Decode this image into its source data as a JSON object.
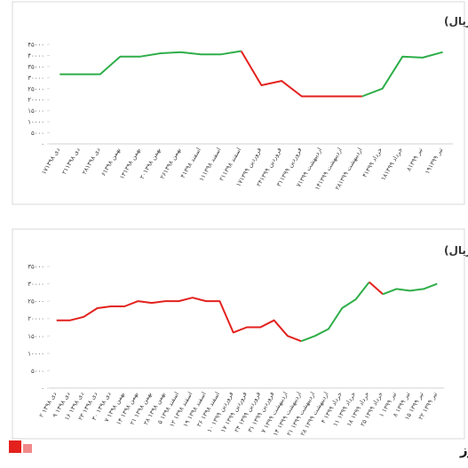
{
  "chart_data": [
    {
      "type": "line",
      "title": "روند قیمت لوب کات سبک و سنگین پالایشگاه تهران (تن-هزار ریال)",
      "categories": [
        "۱۷دی ۱۳۹۸",
        "۲۱دی ۱۳۹۸",
        "۲۸دی ۱۳۹۸",
        "۶بهمن ۱۳۹۸",
        "۱۳بهمن ۱۳۹۸",
        "۲۰بهمن ۱۳۹۸",
        "۲۶بهمن ۱۳۹۸",
        "۴اسفند ۱۳۹۸",
        "۱۱اسفند ۱۳۹۸",
        "۲۱اسفند ۱۳۹۸",
        "۱۷فروردین ۱۳۹۹",
        "۲۴فروردین ۱۳۹۹",
        "۳۱فروردین ۱۳۹۹",
        "۷اردیبهشت ۱۳۹۹",
        "۱۴اردیبهشت ۱۳۹۹",
        "۲۸اردیبهشت ۱۳۹۹",
        "۴خرداد ۱۳۹۹",
        "۱۸خرداد ۱۳۹۹",
        "۸تیر ۱۳۹۹",
        "۱۹تیر ۱۳۹۹"
      ],
      "series": [
        {
          "color": "#2eae48",
          "values": [
            31500,
            31500,
            31500,
            39500,
            39500,
            41000,
            41500,
            40500,
            40500,
            42000,
            null,
            null,
            null,
            null,
            null,
            null,
            null,
            null,
            null,
            null
          ]
        },
        {
          "color": "#e3211d",
          "values": [
            null,
            null,
            null,
            null,
            null,
            null,
            null,
            null,
            null,
            42000,
            26500,
            28500,
            21500,
            21500,
            21500,
            21500,
            null,
            null,
            null,
            null
          ]
        },
        {
          "color": "#2eae48",
          "values": [
            null,
            null,
            null,
            null,
            null,
            null,
            null,
            null,
            null,
            null,
            null,
            null,
            null,
            null,
            null,
            21500,
            25000,
            39500,
            39000,
            41500
          ]
        }
      ],
      "ylim": [
        0,
        45000
      ],
      "yticks": [
        {
          "value": 0,
          "label": "۰"
        },
        {
          "value": 5000,
          "label": "۵۰۰۰"
        },
        {
          "value": 10000,
          "label": "۱۰۰۰۰"
        },
        {
          "value": 15000,
          "label": "۱۵۰۰۰"
        },
        {
          "value": 20000,
          "label": "۲۰۰۰۰"
        },
        {
          "value": 25000,
          "label": "۲۵۰۰۰"
        },
        {
          "value": 30000,
          "label": "۳۰۰۰۰"
        },
        {
          "value": 35000,
          "label": "۳۵۰۰۰"
        },
        {
          "value": 40000,
          "label": "۴۰۰۰۰"
        },
        {
          "value": 45000,
          "label": "۴۵۰۰۰"
        }
      ],
      "grid": false
    },
    {
      "type": "line",
      "title": "روند قیمتی وکیوم باتوم پالایشگاه تهران (تن-هزار ریال)",
      "categories": [
        "۲ دی ۱۳۹۸",
        "۹ دی ۱۳۹۸",
        "۱۶ دی ۱۳۹۸",
        "۲۳ دی ۱۳۹۸",
        "۳۰ دی ۱۳۹۸",
        "۷ بهمن ۱۳۹۸",
        "۱۴ بهمن ۱۳۹۸",
        "۲۱ بهمن ۱۳۹۸",
        "۲۸ بهمن ۱۳۹۸",
        "۵ اسفند ۱۳۹۸",
        "۱۲ اسفند ۱۳۹۸",
        "۱۹ اسفند ۱۳۹۸",
        "۲۶ اسفند ۱۳۹۸",
        "۱۰ فروردین ۱۳۹۹",
        "۱۷ فروردین ۱۳۹۹",
        "۲۴ فروردین ۱۳۹۹",
        "۳۱ فروردین ۱۳۹۹",
        "۷ اردیبهشت ۱۳۹۹",
        "۱۴ اردیبهشت ۱۳۹۹",
        "۲۱ اردیبهشت ۱۳۹۹",
        "۲۸ اردیبهشت ۱۳۹۹",
        "۴ خرداد ۱۳۹۹",
        "۱۱ خرداد ۱۳۹۹",
        "۱۸ خرداد ۱۳۹۹",
        "۲۵ خرداد ۱۳۹۹",
        "۱ تیر ۱۳۹۹",
        "۸ تیر ۱۳۹۹",
        "۱۵ تیر ۱۳۹۹",
        "۲۲ تیر ۱۳۹۹"
      ],
      "series": [
        {
          "color": "#e3211d",
          "values": [
            19500,
            19500,
            20500,
            23000,
            23500,
            23500,
            25000,
            24500,
            25000,
            25000,
            26000,
            25000,
            25000,
            16000,
            17500,
            17500,
            19500,
            15000,
            13500,
            null,
            null,
            null,
            null,
            null,
            null,
            null,
            null,
            null,
            null
          ]
        },
        {
          "color": "#2eae48",
          "values": [
            null,
            null,
            null,
            null,
            null,
            null,
            null,
            null,
            null,
            null,
            null,
            null,
            null,
            null,
            null,
            null,
            null,
            null,
            13500,
            15000,
            17000,
            23000,
            25500,
            30500,
            null,
            null,
            null,
            null,
            null
          ]
        },
        {
          "color": "#e3211d",
          "values": [
            null,
            null,
            null,
            null,
            null,
            null,
            null,
            null,
            null,
            null,
            null,
            null,
            null,
            null,
            null,
            null,
            null,
            null,
            null,
            null,
            null,
            null,
            null,
            30500,
            27000,
            null,
            null,
            null,
            null
          ]
        },
        {
          "color": "#2eae48",
          "values": [
            null,
            null,
            null,
            null,
            null,
            null,
            null,
            null,
            null,
            null,
            null,
            null,
            null,
            null,
            null,
            null,
            null,
            null,
            null,
            null,
            null,
            null,
            null,
            null,
            27000,
            28500,
            28000,
            28500,
            30000
          ]
        }
      ],
      "ylim": [
        0,
        35000
      ],
      "yticks": [
        {
          "value": 0,
          "label": "۰"
        },
        {
          "value": 5000,
          "label": "۵۰۰۰"
        },
        {
          "value": 10000,
          "label": "۱۰۰۰۰"
        },
        {
          "value": 15000,
          "label": "۱۵۰۰۰"
        },
        {
          "value": 20000,
          "label": "۲۰۰۰۰"
        },
        {
          "value": 25000,
          "label": "۲۵۰۰۰"
        },
        {
          "value": 30000,
          "label": "۳۰۰۰۰"
        },
        {
          "value": 35000,
          "label": "۳۵۰۰۰"
        }
      ],
      "grid": false
    }
  ],
  "footer": {
    "brand": "بورس نیوز"
  }
}
